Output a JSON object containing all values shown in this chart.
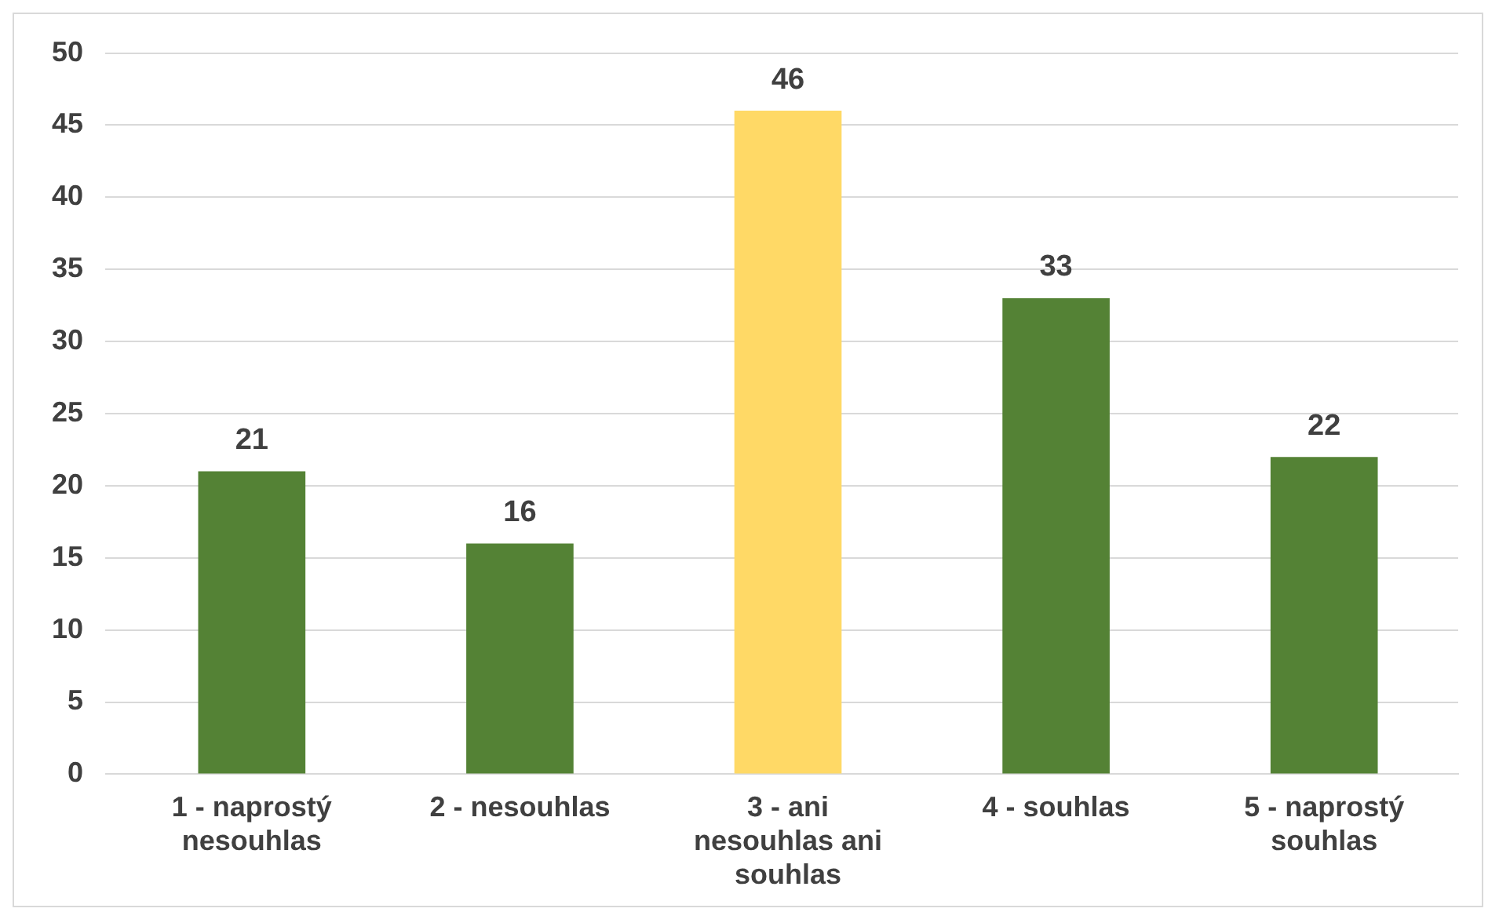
{
  "chart_data": {
    "type": "bar",
    "categories": [
      "1 - naprostý nesouhlas",
      "2 - nesouhlas",
      "3 - ani nesouhlas ani souhlas",
      "4 - souhlas",
      "5 - naprostý souhlas"
    ],
    "values": [
      21,
      16,
      46,
      33,
      22
    ],
    "colors": [
      "#548235",
      "#548235",
      "#ffd966",
      "#548235",
      "#548235"
    ],
    "ylim": [
      0,
      50
    ],
    "yticks": [
      0,
      5,
      10,
      15,
      20,
      25,
      30,
      35,
      40,
      45,
      50
    ],
    "grid": "y",
    "legend": false,
    "data_labels": true
  }
}
